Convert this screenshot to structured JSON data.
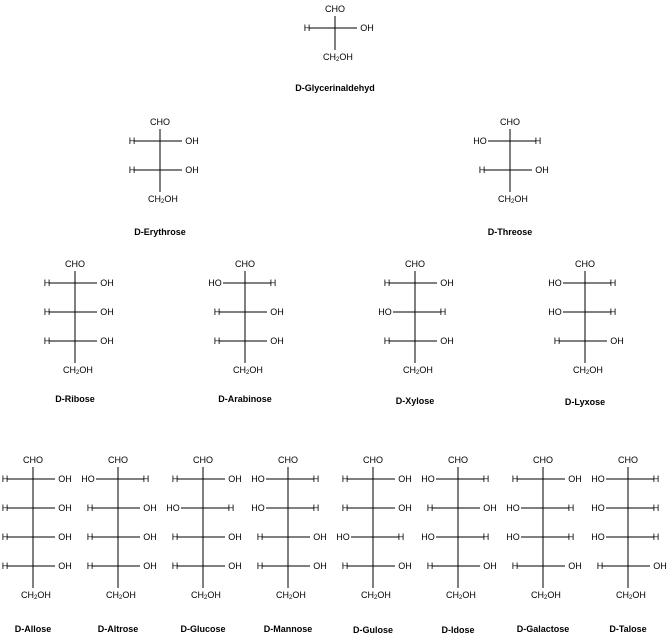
{
  "diagram": {
    "top_group": "CHO",
    "bottom_group": "CH",
    "bottom_sub": "2",
    "bottom_tail": "OH",
    "molecules": [
      {
        "name": "D-Glycerinaldehyd",
        "rows": [
          [
            "H",
            "OH"
          ]
        ]
      },
      {
        "name": "D-Erythrose",
        "rows": [
          [
            "H",
            "OH"
          ],
          [
            "H",
            "OH"
          ]
        ]
      },
      {
        "name": "D-Threose",
        "rows": [
          [
            "HO",
            "H"
          ],
          [
            "H",
            "OH"
          ]
        ]
      },
      {
        "name": "D-Ribose",
        "rows": [
          [
            "H",
            "OH"
          ],
          [
            "H",
            "OH"
          ],
          [
            "H",
            "OH"
          ]
        ]
      },
      {
        "name": "D-Arabinose",
        "rows": [
          [
            "HO",
            "H"
          ],
          [
            "H",
            "OH"
          ],
          [
            "H",
            "OH"
          ]
        ]
      },
      {
        "name": "D-Xylose",
        "rows": [
          [
            "H",
            "OH"
          ],
          [
            "HO",
            "H"
          ],
          [
            "H",
            "OH"
          ]
        ]
      },
      {
        "name": "D-Lyxose",
        "rows": [
          [
            "HO",
            "H"
          ],
          [
            "HO",
            "H"
          ],
          [
            "H",
            "OH"
          ]
        ]
      },
      {
        "name": "D-Allose",
        "rows": [
          [
            "H",
            "OH"
          ],
          [
            "H",
            "OH"
          ],
          [
            "H",
            "OH"
          ],
          [
            "H",
            "OH"
          ]
        ]
      },
      {
        "name": "D-Altrose",
        "rows": [
          [
            "HO",
            "H"
          ],
          [
            "H",
            "OH"
          ],
          [
            "H",
            "OH"
          ],
          [
            "H",
            "OH"
          ]
        ]
      },
      {
        "name": "D-Glucose",
        "rows": [
          [
            "H",
            "OH"
          ],
          [
            "HO",
            "H"
          ],
          [
            "H",
            "OH"
          ],
          [
            "H",
            "OH"
          ]
        ]
      },
      {
        "name": "D-Mannose",
        "rows": [
          [
            "HO",
            "H"
          ],
          [
            "HO",
            "H"
          ],
          [
            "H",
            "OH"
          ],
          [
            "H",
            "OH"
          ]
        ]
      },
      {
        "name": "D-Gulose",
        "rows": [
          [
            "H",
            "OH"
          ],
          [
            "H",
            "OH"
          ],
          [
            "HO",
            "H"
          ],
          [
            "H",
            "OH"
          ]
        ]
      },
      {
        "name": "D-Idose",
        "rows": [
          [
            "HO",
            "H"
          ],
          [
            "H",
            "OH"
          ],
          [
            "HO",
            "H"
          ],
          [
            "H",
            "OH"
          ]
        ]
      },
      {
        "name": "D-Galactose",
        "rows": [
          [
            "H",
            "OH"
          ],
          [
            "HO",
            "H"
          ],
          [
            "HO",
            "H"
          ],
          [
            "H",
            "OH"
          ]
        ]
      },
      {
        "name": "D-Talose",
        "rows": [
          [
            "HO",
            "H"
          ],
          [
            "HO",
            "H"
          ],
          [
            "HO",
            "H"
          ],
          [
            "H",
            "OH"
          ]
        ]
      }
    ]
  }
}
